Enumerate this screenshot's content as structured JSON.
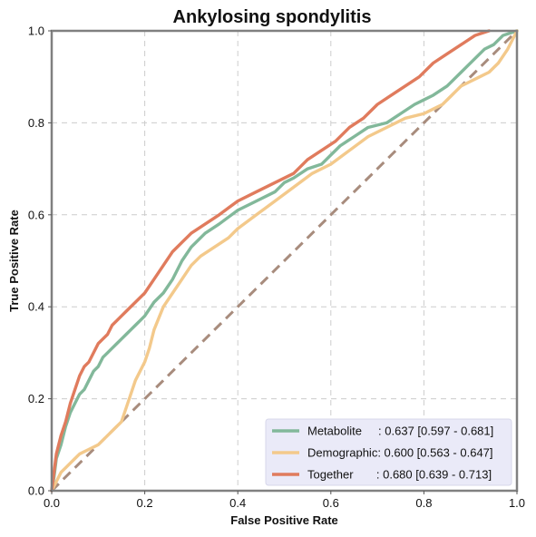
{
  "chart_data": {
    "type": "line",
    "title": "Ankylosing spondylitis",
    "xlabel": "False Positive Rate",
    "ylabel": "True Positive Rate",
    "xlim": [
      0,
      1
    ],
    "ylim": [
      0,
      1
    ],
    "xticks": [
      "0.0",
      "0.2",
      "0.4",
      "0.6",
      "0.8",
      "1.0"
    ],
    "yticks": [
      "0.0",
      "0.2",
      "0.4",
      "0.6",
      "0.8",
      "1.0"
    ],
    "grid": true,
    "legend_position": "lower-right",
    "diagonal": {
      "x": [
        0,
        1
      ],
      "y": [
        0,
        1
      ],
      "color": "#a88c7d"
    },
    "series": [
      {
        "name": "Metabolite",
        "legend": "Metabolite     : 0.637 [0.597 - 0.681]",
        "color": "#82b89a",
        "x": [
          0,
          0.005,
          0.01,
          0.02,
          0.03,
          0.04,
          0.05,
          0.06,
          0.07,
          0.08,
          0.09,
          0.1,
          0.11,
          0.12,
          0.13,
          0.14,
          0.15,
          0.16,
          0.17,
          0.18,
          0.19,
          0.2,
          0.22,
          0.24,
          0.26,
          0.28,
          0.3,
          0.33,
          0.36,
          0.4,
          0.44,
          0.48,
          0.5,
          0.52,
          0.55,
          0.58,
          0.6,
          0.62,
          0.65,
          0.68,
          0.72,
          0.75,
          0.78,
          0.8,
          0.82,
          0.85,
          0.87,
          0.89,
          0.91,
          0.93,
          0.95,
          0.97,
          1.0
        ],
        "y": [
          0,
          0.03,
          0.07,
          0.1,
          0.14,
          0.17,
          0.19,
          0.21,
          0.22,
          0.24,
          0.26,
          0.27,
          0.29,
          0.3,
          0.31,
          0.32,
          0.33,
          0.34,
          0.35,
          0.36,
          0.37,
          0.38,
          0.41,
          0.43,
          0.46,
          0.5,
          0.53,
          0.56,
          0.58,
          0.61,
          0.63,
          0.65,
          0.67,
          0.68,
          0.7,
          0.71,
          0.73,
          0.75,
          0.77,
          0.79,
          0.8,
          0.82,
          0.84,
          0.85,
          0.86,
          0.88,
          0.9,
          0.92,
          0.94,
          0.96,
          0.97,
          0.99,
          1.0
        ]
      },
      {
        "name": "Demographic",
        "legend": "Demographic: 0.600 [0.563 - 0.647]",
        "color": "#f3c98b",
        "x": [
          0,
          0.01,
          0.02,
          0.03,
          0.04,
          0.05,
          0.06,
          0.08,
          0.1,
          0.12,
          0.14,
          0.15,
          0.16,
          0.17,
          0.18,
          0.19,
          0.2,
          0.21,
          0.22,
          0.24,
          0.26,
          0.28,
          0.3,
          0.32,
          0.35,
          0.38,
          0.4,
          0.44,
          0.48,
          0.52,
          0.56,
          0.6,
          0.64,
          0.68,
          0.72,
          0.76,
          0.8,
          0.82,
          0.84,
          0.86,
          0.88,
          0.9,
          0.92,
          0.94,
          0.96,
          0.98,
          1.0
        ],
        "y": [
          0,
          0.02,
          0.04,
          0.05,
          0.06,
          0.07,
          0.08,
          0.09,
          0.1,
          0.12,
          0.14,
          0.15,
          0.18,
          0.21,
          0.24,
          0.26,
          0.28,
          0.31,
          0.35,
          0.4,
          0.43,
          0.46,
          0.49,
          0.51,
          0.53,
          0.55,
          0.57,
          0.6,
          0.63,
          0.66,
          0.69,
          0.71,
          0.74,
          0.77,
          0.79,
          0.81,
          0.82,
          0.83,
          0.84,
          0.86,
          0.88,
          0.89,
          0.9,
          0.91,
          0.93,
          0.96,
          1.0
        ]
      },
      {
        "name": "Together",
        "legend": "Together       : 0.680 [0.639 - 0.713]",
        "color": "#e07b5d",
        "x": [
          0,
          0.005,
          0.01,
          0.015,
          0.02,
          0.03,
          0.04,
          0.05,
          0.06,
          0.07,
          0.08,
          0.09,
          0.1,
          0.11,
          0.12,
          0.13,
          0.14,
          0.15,
          0.16,
          0.18,
          0.2,
          0.22,
          0.24,
          0.26,
          0.28,
          0.3,
          0.33,
          0.36,
          0.4,
          0.44,
          0.48,
          0.52,
          0.55,
          0.58,
          0.61,
          0.64,
          0.67,
          0.7,
          0.73,
          0.76,
          0.79,
          0.82,
          0.85,
          0.88,
          0.91,
          0.94
        ],
        "y": [
          0,
          0.04,
          0.08,
          0.1,
          0.12,
          0.15,
          0.19,
          0.22,
          0.25,
          0.27,
          0.28,
          0.3,
          0.32,
          0.33,
          0.34,
          0.36,
          0.37,
          0.38,
          0.39,
          0.41,
          0.43,
          0.46,
          0.49,
          0.52,
          0.54,
          0.56,
          0.58,
          0.6,
          0.63,
          0.65,
          0.67,
          0.69,
          0.72,
          0.74,
          0.76,
          0.79,
          0.81,
          0.84,
          0.86,
          0.88,
          0.9,
          0.93,
          0.95,
          0.97,
          0.99,
          1.0
        ]
      }
    ]
  }
}
